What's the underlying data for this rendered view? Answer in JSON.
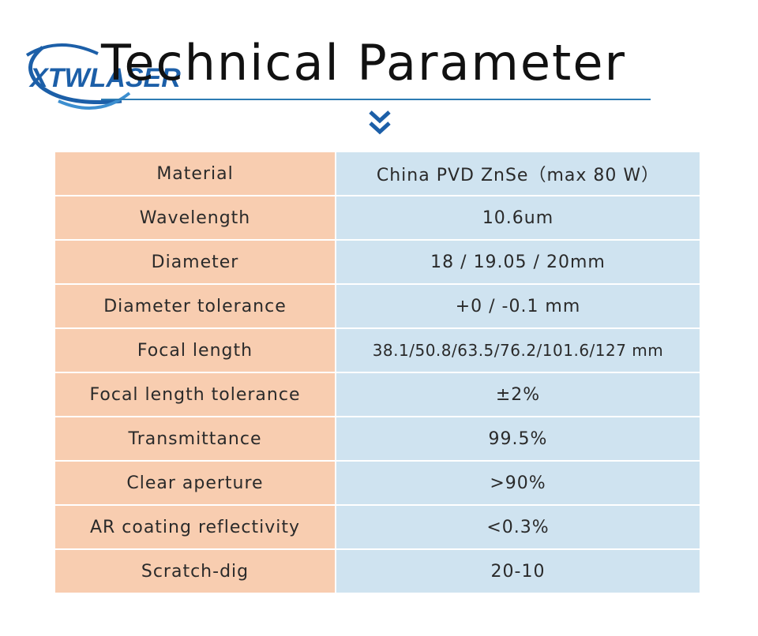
{
  "logo": {
    "text": "XTWLASER",
    "colors": {
      "primary": "#1c5fa8",
      "accent": "#3d8fd0"
    }
  },
  "header": {
    "title": "Technical Parameter",
    "rule_color": "#2d7bb3",
    "chevron_icon": "double-chevron-down-icon"
  },
  "colors": {
    "key_cell": "#f8cdb0",
    "value_cell": "#cfe3f0"
  },
  "specs": [
    {
      "label": "Material",
      "value": "China PVD ZnSe（max 80 W）"
    },
    {
      "label": "Wavelength",
      "value": "10.6um"
    },
    {
      "label": "Diameter",
      "value": "18 / 19.05 / 20mm"
    },
    {
      "label": "Diameter tolerance",
      "value": "+0 / -0.1 mm"
    },
    {
      "label": "Focal length",
      "value": "38.1/50.8/63.5/76.2/101.6/127 mm"
    },
    {
      "label": "Focal length tolerance",
      "value": "±2%"
    },
    {
      "label": "Transmittance",
      "value": "99.5%"
    },
    {
      "label": "Clear aperture",
      "value": ">90%"
    },
    {
      "label": "AR coating reflectivity",
      "value": "<0.3%"
    },
    {
      "label": "Scratch-dig",
      "value": "20-10"
    }
  ]
}
